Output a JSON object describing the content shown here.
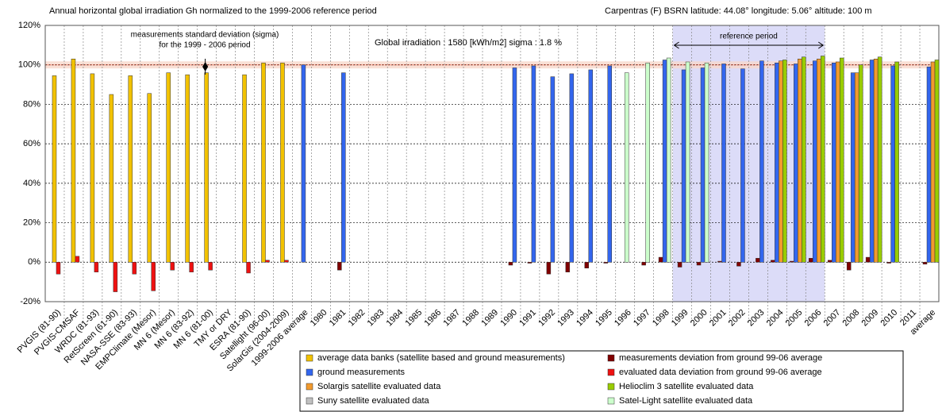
{
  "chart_data": {
    "type": "bar",
    "title": "Annual horizontal global irradiation Gh normalized to the 1999-2006 reference period",
    "subtitle": "Carpentras (F) BSRN    latitude: 44.08°  longitude: 5.06°  altitude: 100 m",
    "annotations": [
      "measurements standard deviation (sigma)",
      "for the 1999 - 2006 period",
      "Global irradiation : 1580 [kWh/m2]     sigma : 1.8 %"
    ],
    "reference_period": {
      "label": "reference period",
      "from": "1999",
      "to": "2006"
    },
    "reference_line": 100,
    "band": [
      98.2,
      101.8
    ],
    "categories": [
      "PVGIS (81-90)",
      "PVGIS-CMSAF",
      "WRDC (81-93)",
      "RetScreen (61-90)",
      "NASA-SSE (83-93)",
      "EMPClimate (Mesor)",
      "MN 6 (Mesor)",
      "MN 6 (83-92)",
      "MN 6 (81-00)",
      "TMY or DRY",
      "ESRA (81-90)",
      "Satellight (96-00)",
      "SolarGis (2004-2009)",
      "1999-2006 average",
      "1980",
      "1981",
      "1982",
      "1983",
      "1984",
      "1985",
      "1986",
      "1987",
      "1988",
      "1989",
      "1990",
      "1991",
      "1992",
      "1993",
      "1994",
      "1995",
      "1996",
      "1997",
      "1998",
      "1999",
      "2000",
      "2001",
      "2002",
      "2003",
      "2004",
      "2005",
      "2006",
      "2007",
      "2008",
      "2009",
      "2010",
      "2011",
      "average"
    ],
    "series": [
      {
        "name": "average data banks (satellite based and ground measurements)",
        "color": "#f2c200",
        "values": [
          94.5,
          103,
          95.5,
          85,
          94.5,
          85.5,
          96,
          95,
          96,
          null,
          95,
          101,
          101,
          null,
          null,
          null,
          null,
          null,
          null,
          null,
          null,
          null,
          null,
          null,
          null,
          null,
          null,
          null,
          null,
          null,
          null,
          null,
          null,
          null,
          null,
          null,
          null,
          null,
          null,
          null,
          null,
          null,
          null,
          null,
          null,
          null,
          null
        ]
      },
      {
        "name": "measurements deviation from ground 99-06 average",
        "color": "#800000",
        "values": [
          null,
          null,
          null,
          null,
          null,
          null,
          null,
          null,
          null,
          null,
          null,
          null,
          null,
          null,
          null,
          -4,
          null,
          null,
          null,
          null,
          null,
          null,
          null,
          null,
          -1.5,
          -0.5,
          -6,
          -5,
          -3,
          -0.5,
          null,
          -1.5,
          2.5,
          -2.5,
          -1.5,
          0.5,
          -2,
          2,
          1,
          0.5,
          2,
          1,
          -4,
          2.5,
          -0.5,
          null,
          -1
        ]
      },
      {
        "name": "ground measurements",
        "color": "#3366ee",
        "values": [
          null,
          null,
          null,
          null,
          null,
          null,
          null,
          null,
          null,
          null,
          null,
          null,
          null,
          100,
          null,
          96,
          null,
          null,
          null,
          null,
          null,
          null,
          null,
          null,
          98.5,
          99.5,
          94,
          95.5,
          97.5,
          99.5,
          null,
          null,
          102.5,
          97.5,
          98.5,
          100.5,
          98,
          102,
          101,
          100.5,
          102,
          101,
          96,
          102.5,
          99.5,
          null,
          99
        ]
      },
      {
        "name": "evaluated data deviation from ground 99-06 average",
        "color": "#ee1111",
        "values": [
          -6,
          3,
          -5,
          -15,
          -6,
          -14.5,
          -4,
          -5,
          -4,
          null,
          -5.5,
          1,
          1,
          null,
          null,
          null,
          null,
          null,
          null,
          null,
          null,
          null,
          null,
          null,
          null,
          null,
          null,
          null,
          null,
          null,
          null,
          null,
          null,
          null,
          null,
          null,
          null,
          null,
          null,
          null,
          null,
          null,
          null,
          null,
          null,
          null,
          null
        ]
      },
      {
        "name": "Solargis satellite evaluated data",
        "color": "#f29a2e",
        "values": [
          null,
          null,
          null,
          null,
          null,
          null,
          null,
          null,
          null,
          null,
          null,
          null,
          null,
          null,
          null,
          null,
          null,
          null,
          null,
          null,
          null,
          null,
          null,
          null,
          null,
          null,
          null,
          null,
          null,
          null,
          null,
          null,
          null,
          null,
          null,
          null,
          null,
          null,
          102,
          103,
          103,
          101.5,
          96,
          103,
          null,
          null,
          101.5
        ]
      },
      {
        "name": "Helioclim 3  satellite evaluated data",
        "color": "#99cc00",
        "values": [
          null,
          null,
          null,
          null,
          null,
          null,
          null,
          null,
          null,
          null,
          null,
          null,
          null,
          null,
          null,
          null,
          null,
          null,
          null,
          null,
          null,
          null,
          null,
          null,
          null,
          null,
          null,
          null,
          null,
          null,
          null,
          null,
          null,
          null,
          null,
          null,
          null,
          null,
          102.5,
          104,
          104.5,
          103.5,
          100,
          104,
          101.5,
          null,
          102.5
        ]
      },
      {
        "name": "Suny satellite evaluated data",
        "color": "#c0c0c0",
        "values": [
          null,
          null,
          null,
          null,
          null,
          null,
          null,
          null,
          null,
          null,
          null,
          null,
          null,
          null,
          null,
          null,
          null,
          null,
          null,
          null,
          null,
          null,
          null,
          null,
          null,
          null,
          null,
          null,
          null,
          null,
          null,
          null,
          null,
          null,
          null,
          null,
          null,
          null,
          null,
          null,
          null,
          null,
          null,
          null,
          null,
          null,
          null
        ]
      },
      {
        "name": "Satel-Light satellite evaluated data",
        "color": "#ccffcc",
        "values": [
          null,
          null,
          null,
          null,
          null,
          null,
          null,
          null,
          null,
          null,
          null,
          null,
          null,
          null,
          null,
          null,
          null,
          null,
          null,
          null,
          null,
          null,
          null,
          null,
          null,
          null,
          null,
          null,
          null,
          null,
          96,
          101,
          103.5,
          101.5,
          101,
          null,
          null,
          null,
          null,
          null,
          null,
          null,
          null,
          null,
          null,
          null,
          null
        ]
      }
    ],
    "ylim": [
      -20,
      120
    ],
    "yticks": [
      {
        "value": -20,
        "label": "-20%"
      },
      {
        "value": 0,
        "label": "0%"
      },
      {
        "value": 20,
        "label": "20%"
      },
      {
        "value": 40,
        "label": "40%"
      },
      {
        "value": 60,
        "label": "60%"
      },
      {
        "value": 80,
        "label": "80%"
      },
      {
        "value": 100,
        "label": "100%"
      },
      {
        "value": 120,
        "label": "120%"
      }
    ],
    "grid": true
  }
}
